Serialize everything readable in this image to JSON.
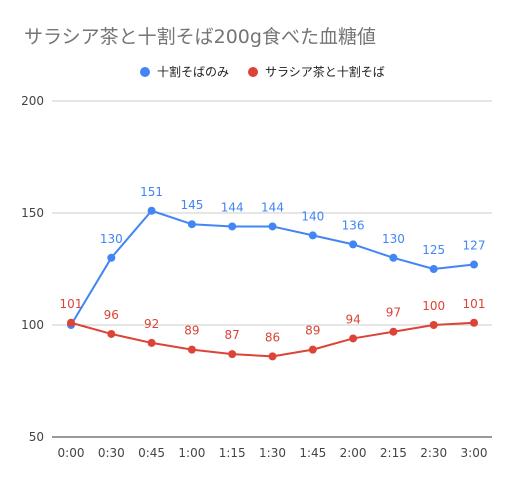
{
  "chart_data": {
    "type": "line",
    "title": "サラシア茶と十割そば200g食べた血糖値",
    "categories": [
      "0:00",
      "0:30",
      "0:45",
      "1:00",
      "1:15",
      "1:30",
      "1:45",
      "2:00",
      "2:15",
      "2:30",
      "3:00"
    ],
    "ylim": [
      50,
      200
    ],
    "yticks": [
      50,
      100,
      150,
      200
    ],
    "grid": true,
    "legend_position": "top",
    "series": [
      {
        "name": "十割そばのみ",
        "color": "#4285f4",
        "values": [
          100,
          130,
          151,
          145,
          144,
          144,
          140,
          136,
          130,
          125,
          127
        ],
        "labels": [
          "",
          "130",
          "151",
          "145",
          "144",
          "144",
          "140",
          "136",
          "130",
          "125",
          "127"
        ]
      },
      {
        "name": "サラシア茶と十割そば",
        "color": "#db4437",
        "values": [
          101,
          96,
          92,
          89,
          87,
          86,
          89,
          94,
          97,
          100,
          101
        ],
        "labels": [
          "101",
          "96",
          "92",
          "89",
          "87",
          "86",
          "89",
          "94",
          "97",
          "100",
          "101"
        ]
      }
    ]
  }
}
